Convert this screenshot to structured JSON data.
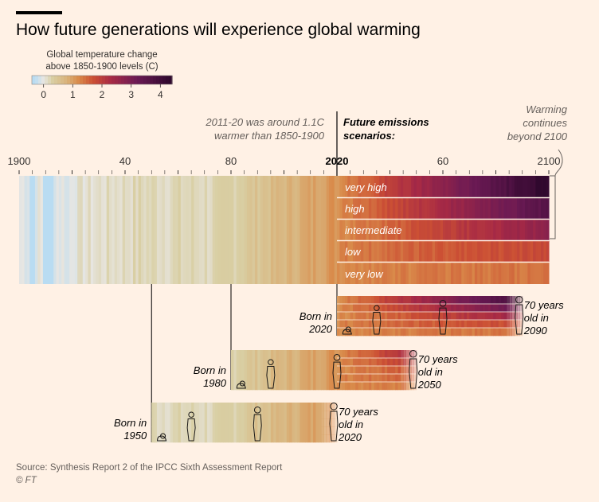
{
  "title": "How future generations will experience global warming",
  "legend": {
    "title_line1": "Global temperature change",
    "title_line2": "above 1850-1900 levels (C)",
    "ticks": [
      "0",
      "1",
      "2",
      "3",
      "4"
    ],
    "colors": [
      "#b9dcf2",
      "#e8e6e2",
      "#d9cfa4",
      "#d9b27a",
      "#d98a4a",
      "#cc5034",
      "#a82a45",
      "#6b1a54",
      "#30082e"
    ]
  },
  "annotations": {
    "past_note_line1": "2011-20 was around 1.1C",
    "past_note_line2": "warmer than 1850-1900",
    "future_label_line1": "Future emissions",
    "future_label_line2": "scenarios:",
    "warming_line1": "Warming",
    "warming_line2": "continues",
    "warming_line3": "beyond 2100"
  },
  "chart_data": {
    "type": "heatmap",
    "title": "How future generations will experience global warming",
    "unit": "temperature change above 1850-1900 levels (C)",
    "x_axis": {
      "range": [
        1900,
        2100
      ],
      "ticks": [
        {
          "year": 1900,
          "label": "1900"
        },
        {
          "year": 1940,
          "label": "40"
        },
        {
          "year": 1980,
          "label": "80"
        },
        {
          "year": 2020,
          "label": "2020"
        },
        {
          "year": 2060,
          "label": "60"
        },
        {
          "year": 2100,
          "label": "2100"
        }
      ]
    },
    "historical": {
      "start": 1900,
      "end": 2020,
      "value_2011_2020": 1.1
    },
    "scenarios": [
      {
        "name": "very high",
        "warming_2100": 4.4
      },
      {
        "name": "high",
        "warming_2100": 3.6
      },
      {
        "name": "intermediate",
        "warming_2100": 2.7
      },
      {
        "name": "low",
        "warming_2100": 1.8
      },
      {
        "name": "very low",
        "warming_2100": 1.4
      }
    ],
    "generations": [
      {
        "birth_year": 1950,
        "born_line1": "Born in",
        "born_line2": "1950",
        "end_year": 2020,
        "end_line1": "70 years",
        "end_line2": "old in",
        "end_line3": "2020"
      },
      {
        "birth_year": 1980,
        "born_line1": "Born in",
        "born_line2": "1980",
        "end_year": 2050,
        "end_line1": "70 years",
        "end_line2": "old in",
        "end_line3": "2050"
      },
      {
        "birth_year": 2020,
        "born_line1": "Born in",
        "born_line2": "2020",
        "end_year": 2090,
        "end_line1": "70 years",
        "end_line2": "old in",
        "end_line3": "2090"
      }
    ]
  },
  "source": "Source: Synthesis Report 2 of the IPCC Sixth Assessment Report",
  "copyright": "© FT"
}
